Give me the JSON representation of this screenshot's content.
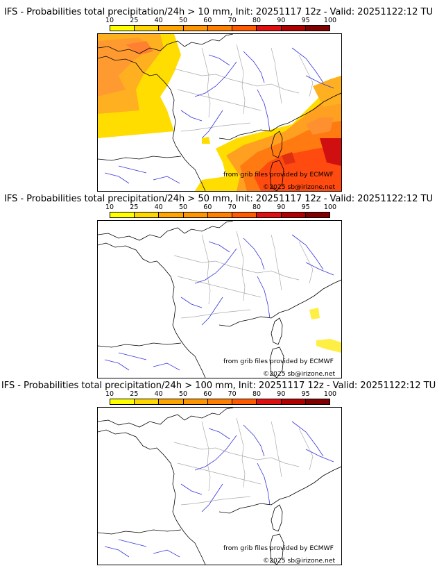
{
  "panels": [
    {
      "title": "IFS - Probabilities total precipitation/24h > 10 mm, Init: 20251117 12z - Valid: 20251122:12 TU",
      "threshold_mm": 10,
      "has_precip_shading": true
    },
    {
      "title": "IFS - Probabilities total precipitation/24h > 50 mm, Init: 20251117 12z - Valid: 20251122:12 TU",
      "threshold_mm": 50,
      "has_precip_shading": true
    },
    {
      "title": "IFS - Probabilities total precipitation/24h > 100 mm, Init: 20251117 12z - Valid: 20251122:12 TU",
      "threshold_mm": 100,
      "has_precip_shading": false
    }
  ],
  "legend": {
    "labels": [
      "10",
      "25",
      "40",
      "50",
      "60",
      "70",
      "80",
      "90",
      "95",
      "100"
    ],
    "colors": [
      "#ffff00",
      "#ffd700",
      "#ffa500",
      "#ff9500",
      "#ff7f00",
      "#ff5a00",
      "#e01010",
      "#b00000",
      "#800000",
      "#500000"
    ]
  },
  "credits": {
    "source": "from grib files provided by ECMWF",
    "copyright": "©2025 sb@irizone.net"
  },
  "colors": {
    "coast": "#000000",
    "rivers": "#3333dd",
    "borders": "#aaaaaa"
  }
}
